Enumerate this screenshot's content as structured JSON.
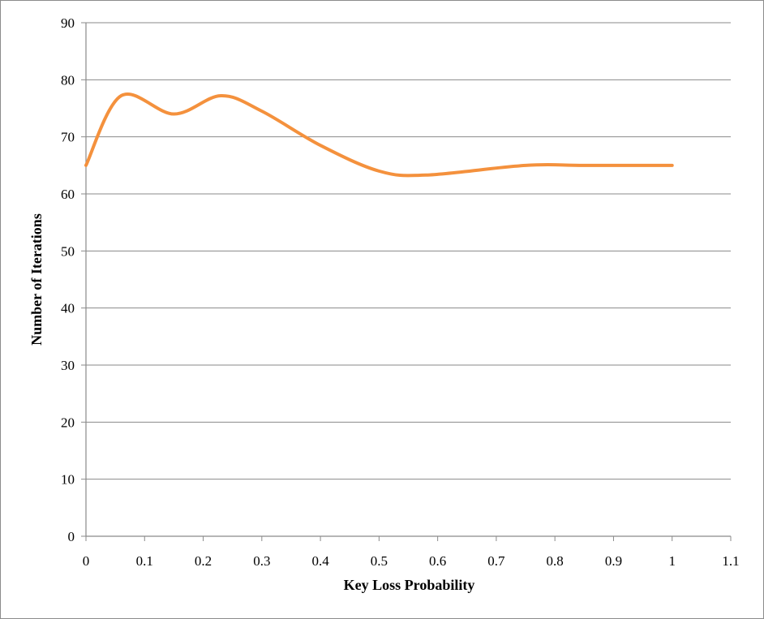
{
  "chart_data": {
    "type": "line",
    "xlabel": "Key Loss Probability",
    "ylabel": "Number of Iterations",
    "xlim": [
      0,
      1.1
    ],
    "ylim": [
      0,
      90
    ],
    "x_ticks": [
      "0",
      "0.1",
      "0.2",
      "0.3",
      "0.4",
      "0.5",
      "0.6",
      "0.7",
      "0.8",
      "0.9",
      "1",
      "1.1"
    ],
    "y_ticks": [
      "0",
      "10",
      "20",
      "30",
      "40",
      "50",
      "60",
      "70",
      "80",
      "90"
    ],
    "grid": "horizontal",
    "legend": "none",
    "series": [
      {
        "color": "#f4913d",
        "smooth": true,
        "x": [
          0,
          0.06,
          0.15,
          0.23,
          0.3,
          0.4,
          0.5,
          0.58,
          0.75,
          0.85,
          1.0
        ],
        "y": [
          65,
          77.2,
          74,
          77.2,
          74.5,
          68.5,
          64,
          63.3,
          65,
          65,
          65
        ]
      }
    ]
  }
}
